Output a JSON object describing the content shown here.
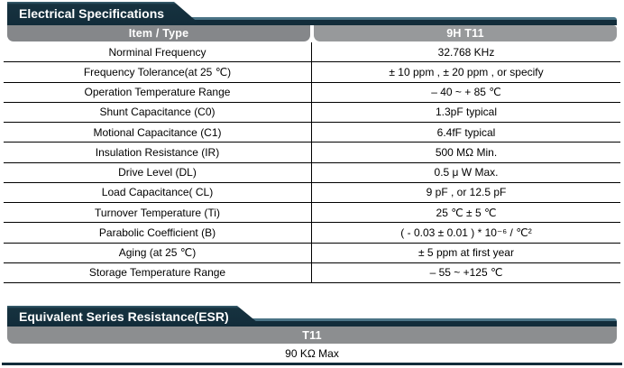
{
  "colors": {
    "header_navy": "#122c3a",
    "teal_edge": "#4a7385",
    "gray_header_left": "#85878a",
    "gray_header_right": "#97999b",
    "gray_header_esr": "#8c8e90",
    "border": "#000000"
  },
  "electrical": {
    "title": "Electrical Specifications",
    "columns": {
      "item": "Item / Type",
      "type": "9H T11"
    },
    "rows": [
      {
        "item": "Norminal Frequency",
        "value": "32.768 KHz"
      },
      {
        "item": "Frequency Tolerance(at 25 ℃)",
        "value": "± 10 ppm , ± 20 ppm , or specify"
      },
      {
        "item": "Operation Temperature Range",
        "value": "– 40 ~ + 85 ℃"
      },
      {
        "item": "Shunt Capacitance (C0)",
        "value": "1.3pF typical"
      },
      {
        "item": "Motional Capacitance (C1)",
        "value": "6.4fF typical"
      },
      {
        "item": "Insulation Resistance (IR)",
        "value": "500 MΩ Min."
      },
      {
        "item": "Drive Level (DL)",
        "value": "0.5 μ W Max."
      },
      {
        "item": "Load Capacitance( CL)",
        "value": "9 pF , or 12.5 pF"
      },
      {
        "item": "Turnover Temperature (Ti)",
        "value": "25 ℃ ± 5 ℃"
      },
      {
        "item": "Parabolic Coefficient (B)",
        "value": "( - 0.03 ± 0.01 ) * 10⁻⁶ / ℃²"
      },
      {
        "item": "Aging (at 25 ℃)",
        "value": "± 5 ppm at first year"
      },
      {
        "item": "Storage Temperature Range",
        "value": "– 55 ~ +125 ℃"
      }
    ]
  },
  "esr": {
    "title": "Equivalent Series Resistance(ESR)",
    "column": "T11",
    "value": "90 KΩ Max"
  }
}
